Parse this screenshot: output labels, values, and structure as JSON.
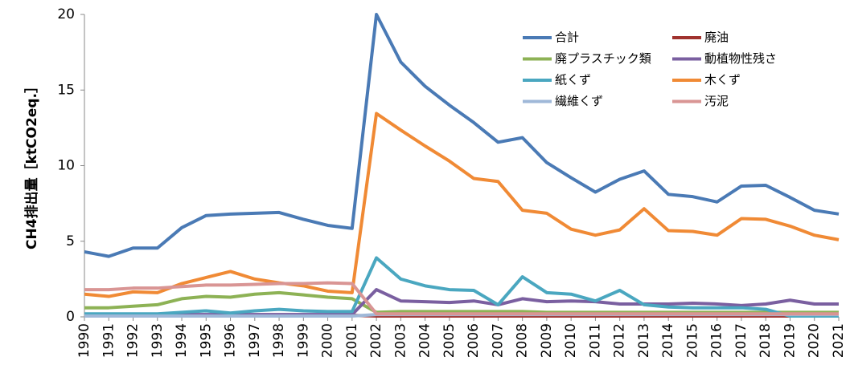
{
  "chart_data": {
    "type": "line",
    "y_label": "CH4排出量［ktCO2eq.］",
    "categories": [
      "1990",
      "1991",
      "1992",
      "1993",
      "1994",
      "1995",
      "1996",
      "1997",
      "1998",
      "1999",
      "2000",
      "2001",
      "2002",
      "2003",
      "2004",
      "2005",
      "2006",
      "2007",
      "2008",
      "2009",
      "2010",
      "2011",
      "2012",
      "2013",
      "2014",
      "2015",
      "2016",
      "2017",
      "2018",
      "2019",
      "2020",
      "2021"
    ],
    "ylim": [
      0,
      20
    ],
    "yticks": [
      0,
      5,
      10,
      15,
      20
    ],
    "grid": false,
    "legend": "upper right",
    "series": [
      {
        "name": "合計",
        "color": "#4a7ab5",
        "values": [
          4.3,
          4.0,
          4.55,
          4.55,
          5.9,
          6.7,
          6.8,
          6.85,
          6.9,
          6.45,
          6.05,
          5.85,
          20.0,
          16.85,
          15.25,
          14.0,
          12.85,
          11.55,
          11.85,
          10.2,
          9.2,
          8.25,
          9.1,
          9.65,
          8.1,
          7.95,
          7.6,
          8.65,
          8.7,
          7.9,
          7.05,
          6.8
        ]
      },
      {
        "name": "廃油",
        "color": "#a0322e",
        "values": [
          0.1,
          0.1,
          0.1,
          0.1,
          0.1,
          0.1,
          0.1,
          0.1,
          0.1,
          0.1,
          0.1,
          0.1,
          0.05,
          0.05,
          0.05,
          0.05,
          0.05,
          0.05,
          0.05,
          0.05,
          0.05,
          0.05,
          0.05,
          0.05,
          0.05,
          0.05,
          0.05,
          0.05,
          0.05,
          0.05,
          0.05,
          0.05
        ]
      },
      {
        "name": "廃プラスチック類",
        "color": "#8db255",
        "values": [
          0.6,
          0.6,
          0.7,
          0.8,
          1.2,
          1.35,
          1.3,
          1.5,
          1.6,
          1.45,
          1.3,
          1.2,
          0.3,
          0.35,
          0.35,
          0.35,
          0.35,
          0.35,
          0.35,
          0.3,
          0.3,
          0.3,
          0.3,
          0.3,
          0.3,
          0.3,
          0.3,
          0.3,
          0.3,
          0.3,
          0.3,
          0.3
        ]
      },
      {
        "name": "動植物性残さ",
        "color": "#7a5fa0",
        "values": [
          0.15,
          0.15,
          0.15,
          0.15,
          0.15,
          0.15,
          0.15,
          0.15,
          0.15,
          0.15,
          0.15,
          0.15,
          1.8,
          1.05,
          1.0,
          0.95,
          1.05,
          0.8,
          1.2,
          1.0,
          1.05,
          1.0,
          0.85,
          0.85,
          0.85,
          0.9,
          0.85,
          0.75,
          0.85,
          1.1,
          0.85,
          0.85
        ]
      },
      {
        "name": "紙くず",
        "color": "#4aa7c0",
        "values": [
          0.2,
          0.2,
          0.2,
          0.2,
          0.3,
          0.4,
          0.25,
          0.4,
          0.5,
          0.4,
          0.35,
          0.35,
          3.9,
          2.5,
          2.05,
          1.8,
          1.75,
          0.8,
          2.65,
          1.6,
          1.5,
          1.05,
          1.75,
          0.8,
          0.65,
          0.6,
          0.6,
          0.6,
          0.5,
          0.05,
          0.05,
          0.05
        ]
      },
      {
        "name": "木くず",
        "color": "#f08a35",
        "values": [
          1.5,
          1.35,
          1.65,
          1.6,
          2.2,
          2.6,
          3.0,
          2.5,
          2.25,
          2.05,
          1.7,
          1.6,
          13.45,
          12.35,
          11.3,
          10.3,
          9.15,
          8.95,
          7.05,
          6.85,
          5.8,
          5.4,
          5.75,
          7.15,
          5.7,
          5.65,
          5.4,
          6.5,
          6.45,
          6.0,
          5.4,
          5.1
        ]
      },
      {
        "name": "繊維くず",
        "color": "#9fb8d8",
        "values": [
          0.05,
          0.05,
          0.05,
          0.05,
          0.05,
          0.05,
          0.05,
          0.05,
          0.05,
          0.05,
          0.05,
          0.05,
          0.15,
          0.15,
          0.15,
          0.15,
          0.15,
          0.15,
          0.15,
          0.15,
          0.15,
          0.15,
          0.15,
          0.15,
          0.15,
          0.15,
          0.15,
          0.15,
          0.15,
          0.15,
          0.15,
          0.15
        ]
      },
      {
        "name": "汚泥",
        "color": "#d99594",
        "values": [
          1.8,
          1.8,
          1.9,
          1.9,
          2.0,
          2.1,
          2.1,
          2.15,
          2.2,
          2.2,
          2.25,
          2.2,
          0.2,
          0.2,
          0.2,
          0.2,
          0.2,
          0.2,
          0.2,
          0.2,
          0.2,
          0.2,
          0.2,
          0.2,
          0.2,
          0.2,
          0.2,
          0.2,
          0.2,
          0.2,
          0.2,
          0.2
        ]
      }
    ]
  }
}
